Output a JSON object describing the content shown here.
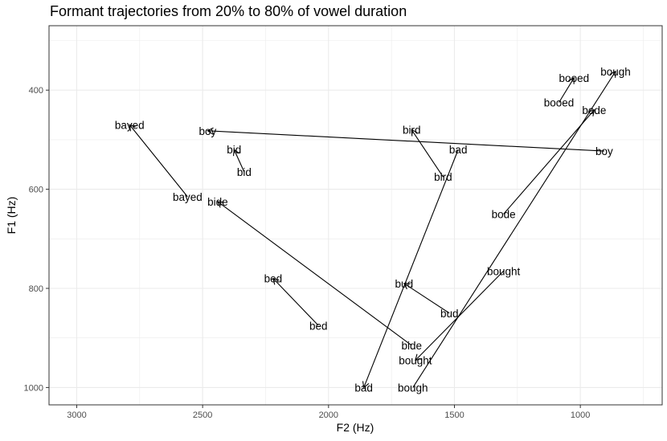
{
  "chart_data": {
    "type": "scatter",
    "title": "Formant trajectories from 20% to 80% of vowel duration",
    "xlabel": "F2 (Hz)",
    "ylabel": "F1 (Hz)",
    "x_reversed": true,
    "y_reversed": true,
    "xlim": [
      3110,
      675
    ],
    "ylim": [
      270,
      1035
    ],
    "x_major_ticks": [
      3000,
      2500,
      2000,
      1500,
      1000
    ],
    "y_major_ticks": [
      400,
      600,
      800,
      1000
    ],
    "x_minor_ticks": [
      2750,
      2250,
      1750,
      1250,
      750
    ],
    "y_minor_ticks": [
      300,
      500,
      700,
      900
    ],
    "grid": true,
    "legend": "none",
    "line_color": "#000000",
    "grid_color": "#ebebeb",
    "trajectories": [
      {
        "word": "bad",
        "start": {
          "f2": 1485,
          "f1": 520
        },
        "end": {
          "f2": 1860,
          "f1": 1000
        }
      },
      {
        "word": "bayed",
        "start": {
          "f2": 2560,
          "f1": 615
        },
        "end": {
          "f2": 2790,
          "f1": 470
        }
      },
      {
        "word": "bed",
        "start": {
          "f2": 2040,
          "f1": 875
        },
        "end": {
          "f2": 2220,
          "f1": 780
        }
      },
      {
        "word": "bid",
        "start": {
          "f2": 2335,
          "f1": 565
        },
        "end": {
          "f2": 2375,
          "f1": 520
        }
      },
      {
        "word": "bide",
        "start": {
          "f2": 1670,
          "f1": 915
        },
        "end": {
          "f2": 2440,
          "f1": 625
        }
      },
      {
        "word": "bird",
        "start": {
          "f2": 1545,
          "f1": 575
        },
        "end": {
          "f2": 1670,
          "f1": 480
        }
      },
      {
        "word": "bode",
        "start": {
          "f2": 1305,
          "f1": 650
        },
        "end": {
          "f2": 945,
          "f1": 440
        }
      },
      {
        "word": "booed",
        "start": {
          "f2": 1085,
          "f1": 425
        },
        "end": {
          "f2": 1025,
          "f1": 375
        }
      },
      {
        "word": "bough",
        "start": {
          "f2": 1665,
          "f1": 1000
        },
        "end": {
          "f2": 860,
          "f1": 362
        }
      },
      {
        "word": "bought",
        "start": {
          "f2": 1305,
          "f1": 765
        },
        "end": {
          "f2": 1655,
          "f1": 945
        }
      },
      {
        "word": "boy",
        "start": {
          "f2": 905,
          "f1": 523
        },
        "end": {
          "f2": 2480,
          "f1": 482
        }
      },
      {
        "word": "bud",
        "start": {
          "f2": 1520,
          "f1": 850
        },
        "end": {
          "f2": 1700,
          "f1": 790
        }
      }
    ]
  }
}
